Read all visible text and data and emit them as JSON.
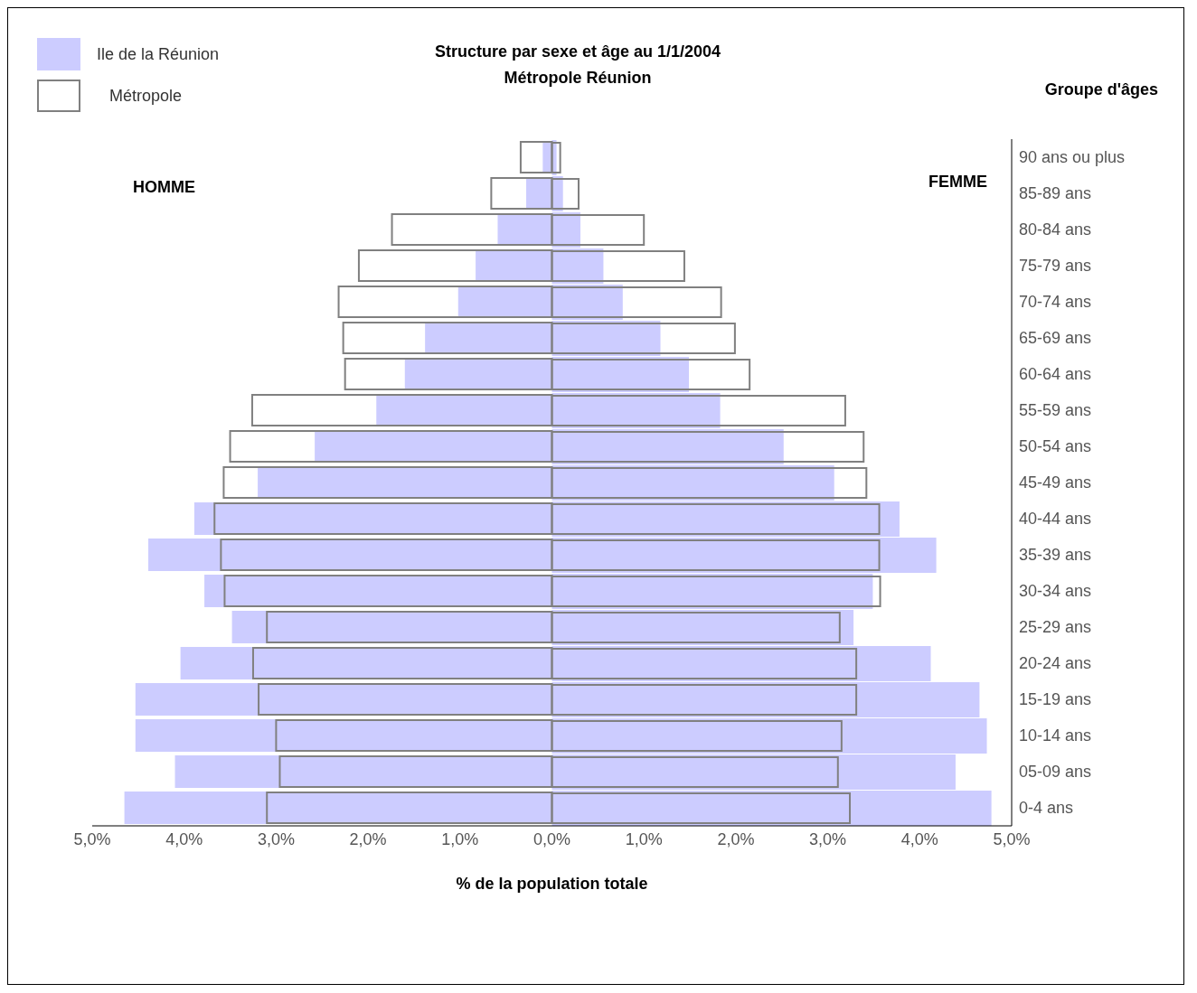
{
  "chart_data": {
    "type": "bar",
    "orientation": "horizontal",
    "title": "Structure par sexe et âge au 1/1/2004",
    "subtitle": "Métropole Réunion",
    "xlabel": "% de la population totale",
    "ylabel": "Groupe d'âges",
    "annotations": [
      "HOMME",
      "FEMME"
    ],
    "categories": [
      "90 ans ou plus",
      "85-89 ans",
      "80-84 ans",
      "75-79 ans",
      "70-74 ans",
      "65-69 ans",
      "60-64 ans",
      "55-59 ans",
      "50-54 ans",
      "45-49 ans",
      "40-44 ans",
      "35-39 ans",
      "30-34 ans",
      "25-29 ans",
      "20-24 ans",
      "15-19 ans",
      "10-14 ans",
      "05-09 ans",
      "0-4 ans"
    ],
    "series": [
      {
        "name": "Ile de la Réunion",
        "color": "#ccccff",
        "values": [
          -0.1,
          -0.28,
          -0.59,
          -0.83,
          -1.02,
          -1.38,
          -1.6,
          -1.91,
          -2.58,
          -3.2,
          -3.89,
          -4.39,
          -3.78,
          -3.48,
          -4.04,
          -4.53,
          -4.53,
          -4.1,
          -4.65
        ]
      },
      {
        "color": "#ccccff",
        "values": [
          0.05,
          0.12,
          0.31,
          0.56,
          0.77,
          1.18,
          1.49,
          1.83,
          2.52,
          3.07,
          3.78,
          4.18,
          3.49,
          3.28,
          4.12,
          4.65,
          4.73,
          4.39,
          4.78
        ]
      },
      {
        "name": "Métropole",
        "color": "#808080",
        "values": [
          -0.34,
          -0.66,
          -1.74,
          -2.1,
          -2.32,
          -2.27,
          -2.25,
          -3.26,
          -3.5,
          -3.57,
          -3.67,
          -3.6,
          -3.56,
          -3.1,
          -3.25,
          -3.19,
          -3.0,
          -2.96,
          -3.1
        ]
      },
      {
        "color": "#808080",
        "values": [
          0.09,
          0.29,
          1.0,
          1.44,
          1.84,
          1.99,
          2.15,
          3.19,
          3.39,
          3.42,
          3.56,
          3.56,
          3.57,
          3.13,
          3.31,
          3.31,
          3.15,
          3.11,
          3.24
        ]
      }
    ],
    "xlim": [
      -5,
      5
    ],
    "xticks": [
      {
        "value": -5,
        "label": "5,0%"
      },
      {
        "value": -4,
        "label": "4,0%"
      },
      {
        "value": -3,
        "label": "3,0%"
      },
      {
        "value": -2,
        "label": "2,0%"
      },
      {
        "value": -1,
        "label": "1,0%"
      },
      {
        "value": 0,
        "label": "0,0%"
      },
      {
        "value": 1,
        "label": "1,0%"
      },
      {
        "value": 2,
        "label": "2,0%"
      },
      {
        "value": 3,
        "label": "3,0%"
      },
      {
        "value": 4,
        "label": "4,0%"
      },
      {
        "value": 5,
        "label": "5,0%"
      }
    ],
    "legend": "top left"
  }
}
